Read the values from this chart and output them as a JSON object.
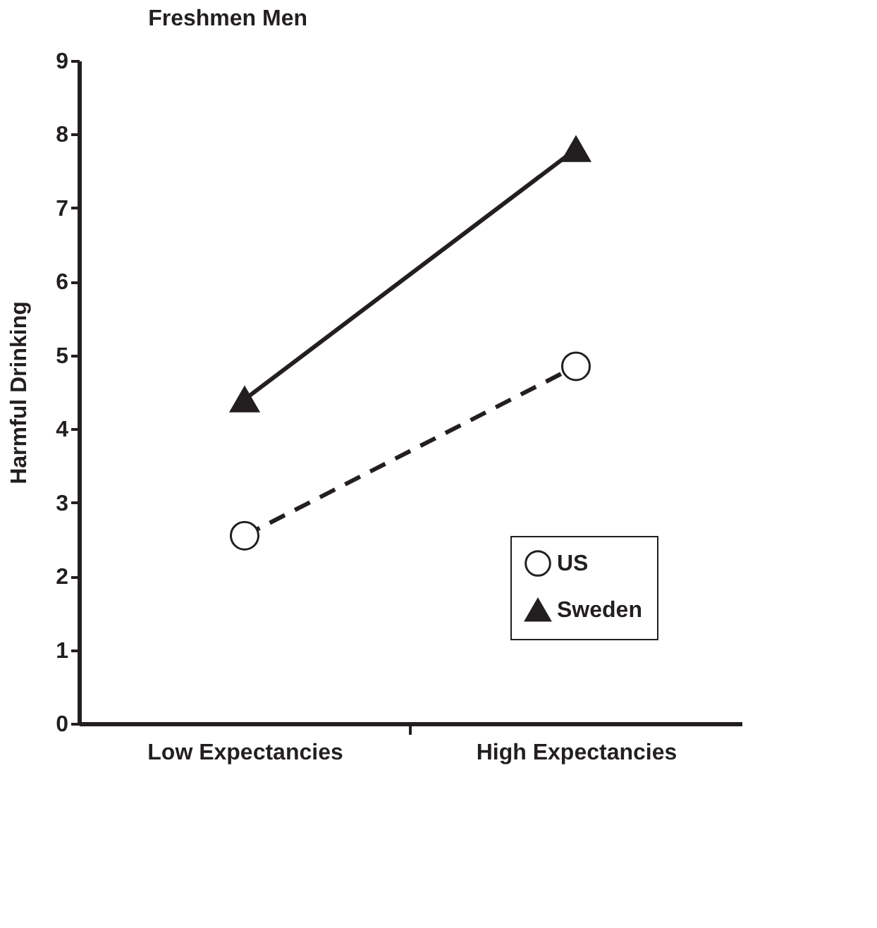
{
  "chart_data": {
    "type": "line",
    "title": "Freshmen Men",
    "ylabel": "Harmful Drinking",
    "categories": [
      "Low Expectancies",
      "High Expectancies"
    ],
    "series": [
      {
        "name": "US",
        "color": "#231f20",
        "values": [
          2.55,
          4.85
        ],
        "marker": "circle",
        "line_style": "dashed"
      },
      {
        "name": "Sweden",
        "color": "#231f20",
        "values": [
          4.4,
          7.8
        ],
        "marker": "triangle",
        "line_style": "solid"
      }
    ],
    "ylim": [
      0,
      9
    ],
    "yticks": [
      0,
      1,
      2,
      3,
      4,
      5,
      6,
      7,
      8,
      9
    ],
    "grid": false,
    "legend": "bottom right"
  }
}
